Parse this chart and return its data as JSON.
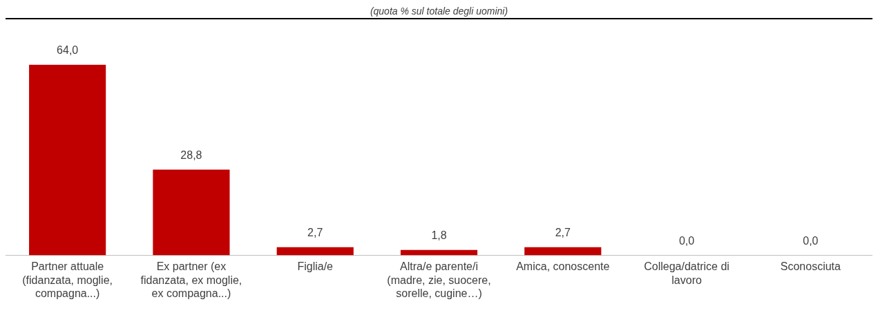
{
  "chart_data": {
    "type": "bar",
    "subtitle": "(quota % sul totale degli uomini)",
    "categories": [
      "Partner attuale (fidanzata, moglie, compagna...)",
      "Ex partner (ex fidanzata, ex moglie, ex compagna...)",
      "Figlia/e",
      "Altra/e parente/i (madre, zie, suocere, sorelle, cugine…)",
      "Amica, conoscente",
      "Collega/datrice di lavoro",
      "Sconosciuta"
    ],
    "values": [
      64.0,
      28.8,
      2.7,
      1.8,
      2.7,
      0.0,
      0.0
    ],
    "value_labels": [
      "64,0",
      "28,8",
      "2,7",
      "1,8",
      "2,7",
      "0,0",
      "0,0"
    ],
    "color": "#c00000",
    "grid": false,
    "legend": false
  }
}
